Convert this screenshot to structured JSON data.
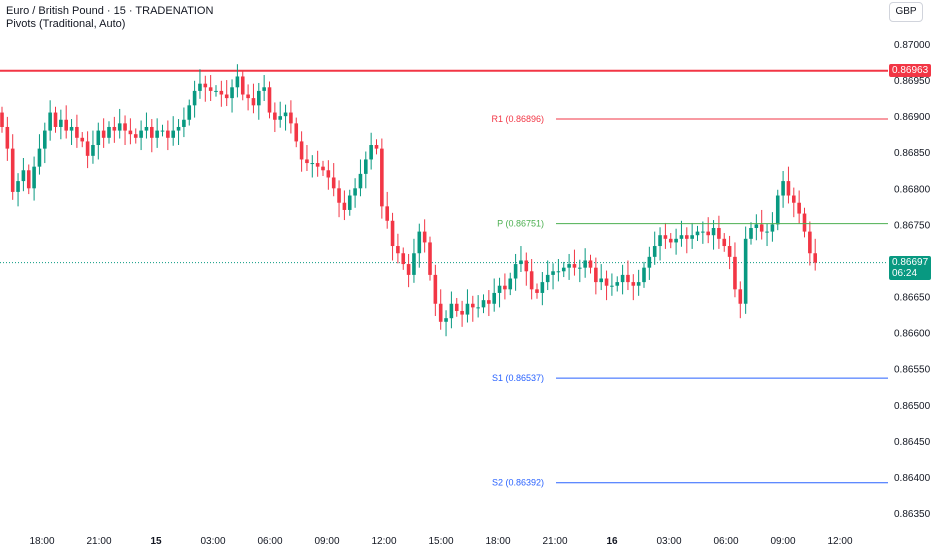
{
  "legend": {
    "title": "Euro / British Pound · 15 · TRADENATION",
    "indicator": "Pivots (Traditional, Auto)"
  },
  "currency_button": "GBP",
  "colors": {
    "up": "#089981",
    "down": "#f23645",
    "pivot_p": "#4caf50",
    "pivot_r": "#f23645",
    "pivot_s": "#2962ff",
    "grid_text": "#131722"
  },
  "price_labels": {
    "high_line": "0.86963",
    "last_price": "0.86697",
    "countdown": "06:24"
  },
  "chart_data": {
    "type": "candlestick",
    "symbol": "Euro / British Pound",
    "interval": "15",
    "y_ticks": [
      "0.87000",
      "0.86950",
      "0.86900",
      "0.86850",
      "0.86800",
      "0.86750",
      "0.86700",
      "0.86650",
      "0.86600",
      "0.86550",
      "0.86500",
      "0.86450",
      "0.86400",
      "0.86350"
    ],
    "x_ticks": [
      "18:00",
      "21:00",
      "15",
      "03:00",
      "06:00",
      "09:00",
      "12:00",
      "15:00",
      "18:00",
      "21:00",
      "16",
      "03:00",
      "06:00",
      "09:00",
      "12:00"
    ],
    "ylim": [
      0.8633,
      0.8703
    ],
    "high_line": 0.86963,
    "last_price": 0.86697,
    "pivots": [
      {
        "label": "R1 (0.86896)",
        "value": 0.86896,
        "kind": "r"
      },
      {
        "label": "P (0.86751)",
        "value": 0.86751,
        "kind": "p"
      },
      {
        "label": "S1 (0.86537)",
        "value": 0.86537,
        "kind": "s"
      },
      {
        "label": "S2 (0.86392)",
        "value": 0.86392,
        "kind": "s"
      }
    ],
    "closes": [
      0.86885,
      0.86855,
      0.86795,
      0.8681,
      0.86825,
      0.868,
      0.8683,
      0.86855,
      0.8688,
      0.86905,
      0.86885,
      0.86895,
      0.8688,
      0.86885,
      0.8687,
      0.86865,
      0.86845,
      0.8686,
      0.8688,
      0.8687,
      0.86885,
      0.8688,
      0.8689,
      0.8688,
      0.86875,
      0.8687,
      0.8688,
      0.86885,
      0.8687,
      0.8688,
      0.8688,
      0.8687,
      0.8688,
      0.86885,
      0.86895,
      0.86915,
      0.86935,
      0.86945,
      0.8694,
      0.86935,
      0.86935,
      0.8693,
      0.86925,
      0.8694,
      0.86955,
      0.8693,
      0.86925,
      0.86915,
      0.86935,
      0.8694,
      0.86905,
      0.86895,
      0.869,
      0.86905,
      0.8689,
      0.86865,
      0.8684,
      0.86835,
      0.86835,
      0.8683,
      0.86825,
      0.86815,
      0.868,
      0.8678,
      0.8677,
      0.8679,
      0.868,
      0.8682,
      0.8684,
      0.8686,
      0.86855,
      0.86775,
      0.86755,
      0.8672,
      0.8671,
      0.86695,
      0.8668,
      0.8671,
      0.8674,
      0.86725,
      0.8668,
      0.8664,
      0.86615,
      0.8662,
      0.8664,
      0.8663,
      0.86625,
      0.8664,
      0.86635,
      0.86635,
      0.86645,
      0.8664,
      0.86655,
      0.86665,
      0.8666,
      0.86675,
      0.86695,
      0.867,
      0.86685,
      0.8666,
      0.86655,
      0.8667,
      0.8668,
      0.86685,
      0.86685,
      0.8669,
      0.86695,
      0.8669,
      0.8669,
      0.867,
      0.8669,
      0.8667,
      0.86675,
      0.86665,
      0.86665,
      0.8667,
      0.8668,
      0.8667,
      0.86665,
      0.8667,
      0.8669,
      0.86705,
      0.8672,
      0.86735,
      0.8673,
      0.86725,
      0.8673,
      0.86735,
      0.8673,
      0.86735,
      0.8674,
      0.8674,
      0.86735,
      0.86745,
      0.8673,
      0.8672,
      0.86705,
      0.8666,
      0.8664,
      0.8673,
      0.86745,
      0.8675,
      0.8674,
      0.8674,
      0.8675,
      0.8679,
      0.8681,
      0.8679,
      0.8678,
      0.86765,
      0.8674,
      0.8671,
      0.86697
    ]
  }
}
